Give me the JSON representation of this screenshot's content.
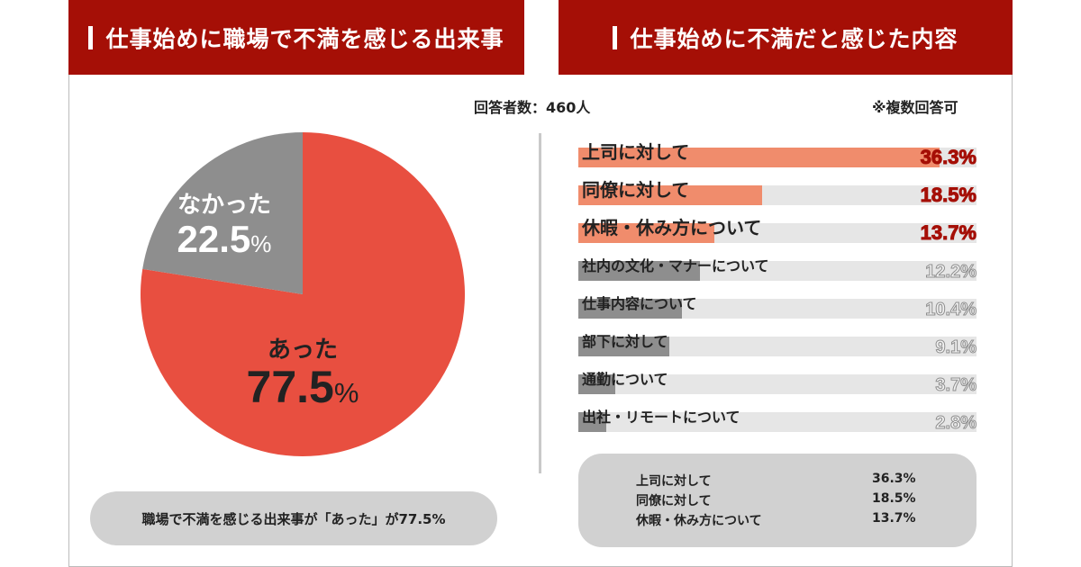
{
  "header": {
    "left_title": "仕事始めに職場で不満を感じる出来事",
    "right_title": "仕事始めに不満だと感じた内容"
  },
  "respondents_label": "回答者数：460人",
  "multiple_answers_label": "※複数回答可",
  "colors": {
    "header_bg": "#a50f06",
    "pie_yes": "#e84f40",
    "pie_no": "#8e8e8e",
    "bar_top": "#f08c6c",
    "bar_other": "#8e8e8e",
    "track": "#e6e6e6"
  },
  "chart_data": [
    {
      "type": "pie",
      "title": "",
      "slices": [
        {
          "label": "あった",
          "value": 77.5,
          "display": "77.5"
        },
        {
          "label": "なかった",
          "value": 22.5,
          "display": "22.5"
        }
      ],
      "unit": "%"
    },
    {
      "type": "bar",
      "orientation": "horizontal",
      "categories": [
        "上司に対して",
        "同僚に対して",
        "休暇・休み方について",
        "社内の文化・マナーについて",
        "仕事内容について",
        "部下に対して",
        "通勤について",
        "出社・リモートについて"
      ],
      "values": [
        36.3,
        18.5,
        13.7,
        12.2,
        10.4,
        9.1,
        3.7,
        2.8
      ],
      "value_labels": [
        "36.3%",
        "18.5%",
        "13.7%",
        "12.2%",
        "10.4%",
        "9.1%",
        "3.7%",
        "2.8%"
      ],
      "xlim": [
        0,
        40
      ],
      "highlighted_count": 3
    }
  ],
  "summary_left": "職場で不満を感じる出来事が「あった」が77.5%",
  "summary_right": [
    {
      "label": "上司に対して",
      "value": "36.3%"
    },
    {
      "label": "同僚に対して",
      "value": "18.5%"
    },
    {
      "label": "休暇・休み方について",
      "value": "13.7%"
    }
  ]
}
